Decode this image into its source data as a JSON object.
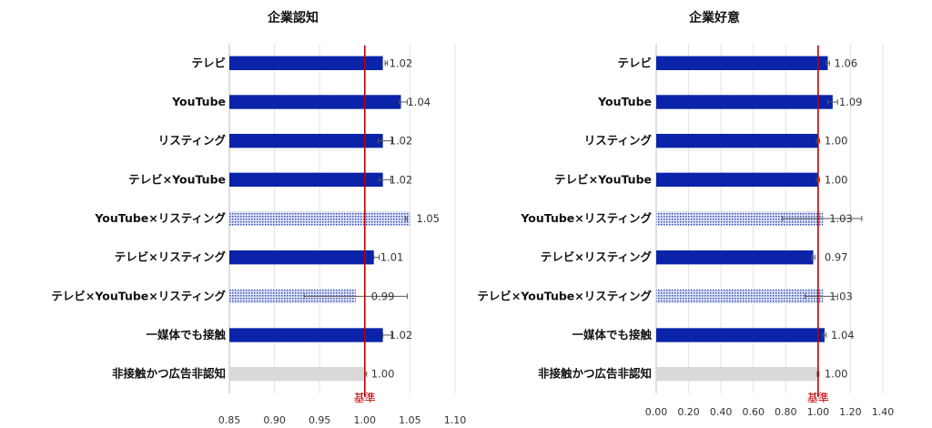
{
  "chart_data": [
    {
      "type": "bar",
      "orientation": "horizontal",
      "title": "企業認知",
      "categories": [
        "テレビ",
        "YouTube",
        "リスティング",
        "テレビ×YouTube",
        "YouTube×リスティング",
        "テレビ×リスティング",
        "テレビ×YouTube×リスティング",
        "一媒体でも接触",
        "非接触かつ広告非認知"
      ],
      "values": [
        1.02,
        1.04,
        1.02,
        1.02,
        1.05,
        1.01,
        0.99,
        1.02,
        1.0
      ],
      "value_labels": [
        "1.02",
        "1.04",
        "1.02",
        "1.02",
        "1.05",
        "1.01",
        "0.99",
        "1.02",
        "1.00"
      ],
      "error_low": [
        1.0225,
        1.038,
        1.015,
        1.016,
        1.045,
        1.01,
        0.933,
        1.02,
        1.0
      ],
      "error_high": [
        1.025,
        1.047,
        1.03,
        1.029,
        1.047,
        1.016,
        1.047,
        1.03,
        1.002
      ],
      "bar_styles": [
        "solid",
        "solid",
        "solid",
        "solid",
        "dotted",
        "solid",
        "dotted",
        "solid",
        "gray"
      ],
      "xlim": [
        0.85,
        1.1
      ],
      "xticks": [
        0.85,
        0.9,
        0.95,
        1.0,
        1.05,
        1.1
      ],
      "xtick_labels": [
        "0.85",
        "0.90",
        "0.95",
        "1.00",
        "1.05",
        "1.10"
      ],
      "reference_line": {
        "value": 1.0,
        "label": "基準"
      },
      "grid": true,
      "colors": {
        "solid": "#0a23a8",
        "dotted": "#9aa6dc",
        "gray": "#d9d9d9",
        "reference": "#c00000"
      }
    },
    {
      "type": "bar",
      "orientation": "horizontal",
      "title": "企業好意",
      "categories": [
        "テレビ",
        "YouTube",
        "リスティング",
        "テレビ×YouTube",
        "YouTube×リスティング",
        "テレビ×リスティング",
        "テレビ×YouTube×リスティング",
        "一媒体でも接触",
        "非接触かつ広告非認知"
      ],
      "values": [
        1.06,
        1.09,
        1.0,
        1.0,
        1.03,
        0.97,
        1.03,
        1.04,
        1.0
      ],
      "value_labels": [
        "1.06",
        "1.09",
        "1.00",
        "1.00",
        "1.03",
        "0.97",
        "1.03",
        "1.04",
        "1.00"
      ],
      "error_low": [
        1.05,
        1.06,
        0.99,
        0.99,
        0.78,
        0.96,
        0.92,
        1.03,
        0.995
      ],
      "error_high": [
        1.07,
        1.12,
        1.01,
        1.01,
        1.27,
        0.98,
        1.12,
        1.05,
        1.005
      ],
      "bar_styles": [
        "solid",
        "solid",
        "solid",
        "solid",
        "dotted",
        "solid",
        "dotted",
        "solid",
        "gray"
      ],
      "xlim": [
        0.0,
        1.4
      ],
      "xticks": [
        0.0,
        0.2,
        0.4,
        0.6,
        0.8,
        1.0,
        1.2,
        1.4
      ],
      "xtick_labels": [
        "0.00",
        "0.20",
        "0.40",
        "0.60",
        "0.80",
        "1.00",
        "1.20",
        "1.40"
      ],
      "reference_line": {
        "value": 1.0,
        "label": "基準"
      },
      "grid": true,
      "colors": {
        "solid": "#0a23a8",
        "dotted": "#9aa6dc",
        "gray": "#d9d9d9",
        "reference": "#c00000"
      }
    }
  ]
}
